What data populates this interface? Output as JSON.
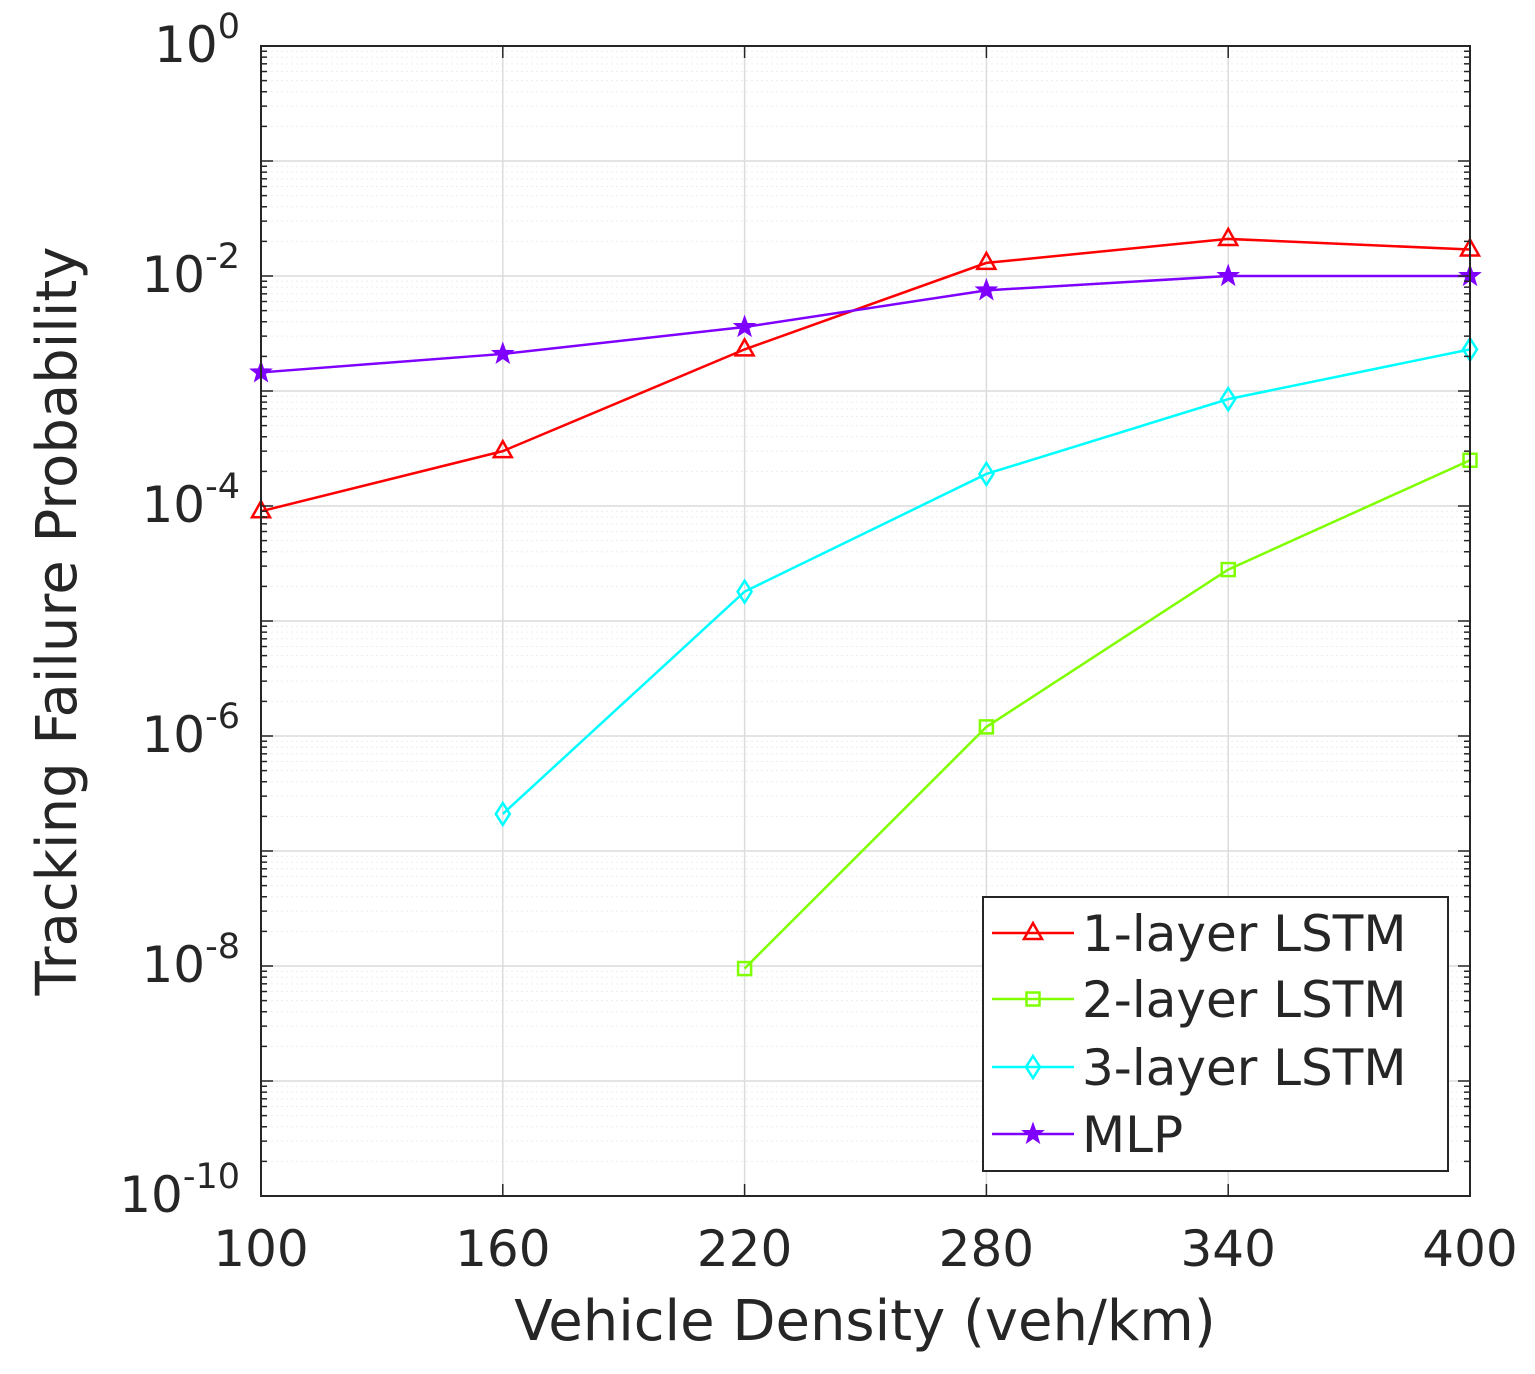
{
  "chart_data": {
    "type": "line",
    "title": "",
    "xlabel": "Vehicle Density (veh/km)",
    "ylabel": "Tracking Failure Probability",
    "xlim": [
      100,
      400
    ],
    "yscale": "log",
    "ylim": [
      1e-10,
      1
    ],
    "grid": true,
    "x_ticks": [
      100,
      160,
      220,
      280,
      340,
      400
    ],
    "y_ticks": [
      {
        "base": "10",
        "exp": "0"
      },
      {
        "base": "10",
        "exp": "-2"
      },
      {
        "base": "10",
        "exp": "-4"
      },
      {
        "base": "10",
        "exp": "-6"
      },
      {
        "base": "10",
        "exp": "-8"
      },
      {
        "base": "10",
        "exp": "-10"
      }
    ],
    "legend_position": "bottom-right",
    "series": [
      {
        "name": "1-layer LSTM",
        "color": "#ff0000",
        "marker": "triangle",
        "x": [
          100,
          160,
          220,
          280,
          340,
          400
        ],
        "y": [
          9e-05,
          0.0003,
          0.0023,
          0.013,
          0.021,
          0.017
        ]
      },
      {
        "name": "2-layer LSTM",
        "color": "#7fff00",
        "marker": "square",
        "x": [
          220,
          280,
          340,
          400
        ],
        "y": [
          9.5e-09,
          1.2e-06,
          2.8e-05,
          0.00025
        ]
      },
      {
        "name": "3-layer LSTM",
        "color": "#00ffff",
        "marker": "diamond",
        "x": [
          160,
          220,
          280,
          340,
          400
        ],
        "y": [
          2.1e-07,
          1.8e-05,
          0.00019,
          0.00085,
          0.0023
        ]
      },
      {
        "name": "MLP",
        "color": "#7f00ff",
        "marker": "star",
        "x": [
          100,
          160,
          220,
          280,
          340,
          400
        ],
        "y": [
          0.00145,
          0.0021,
          0.0036,
          0.0075,
          0.01,
          0.01
        ]
      }
    ]
  }
}
